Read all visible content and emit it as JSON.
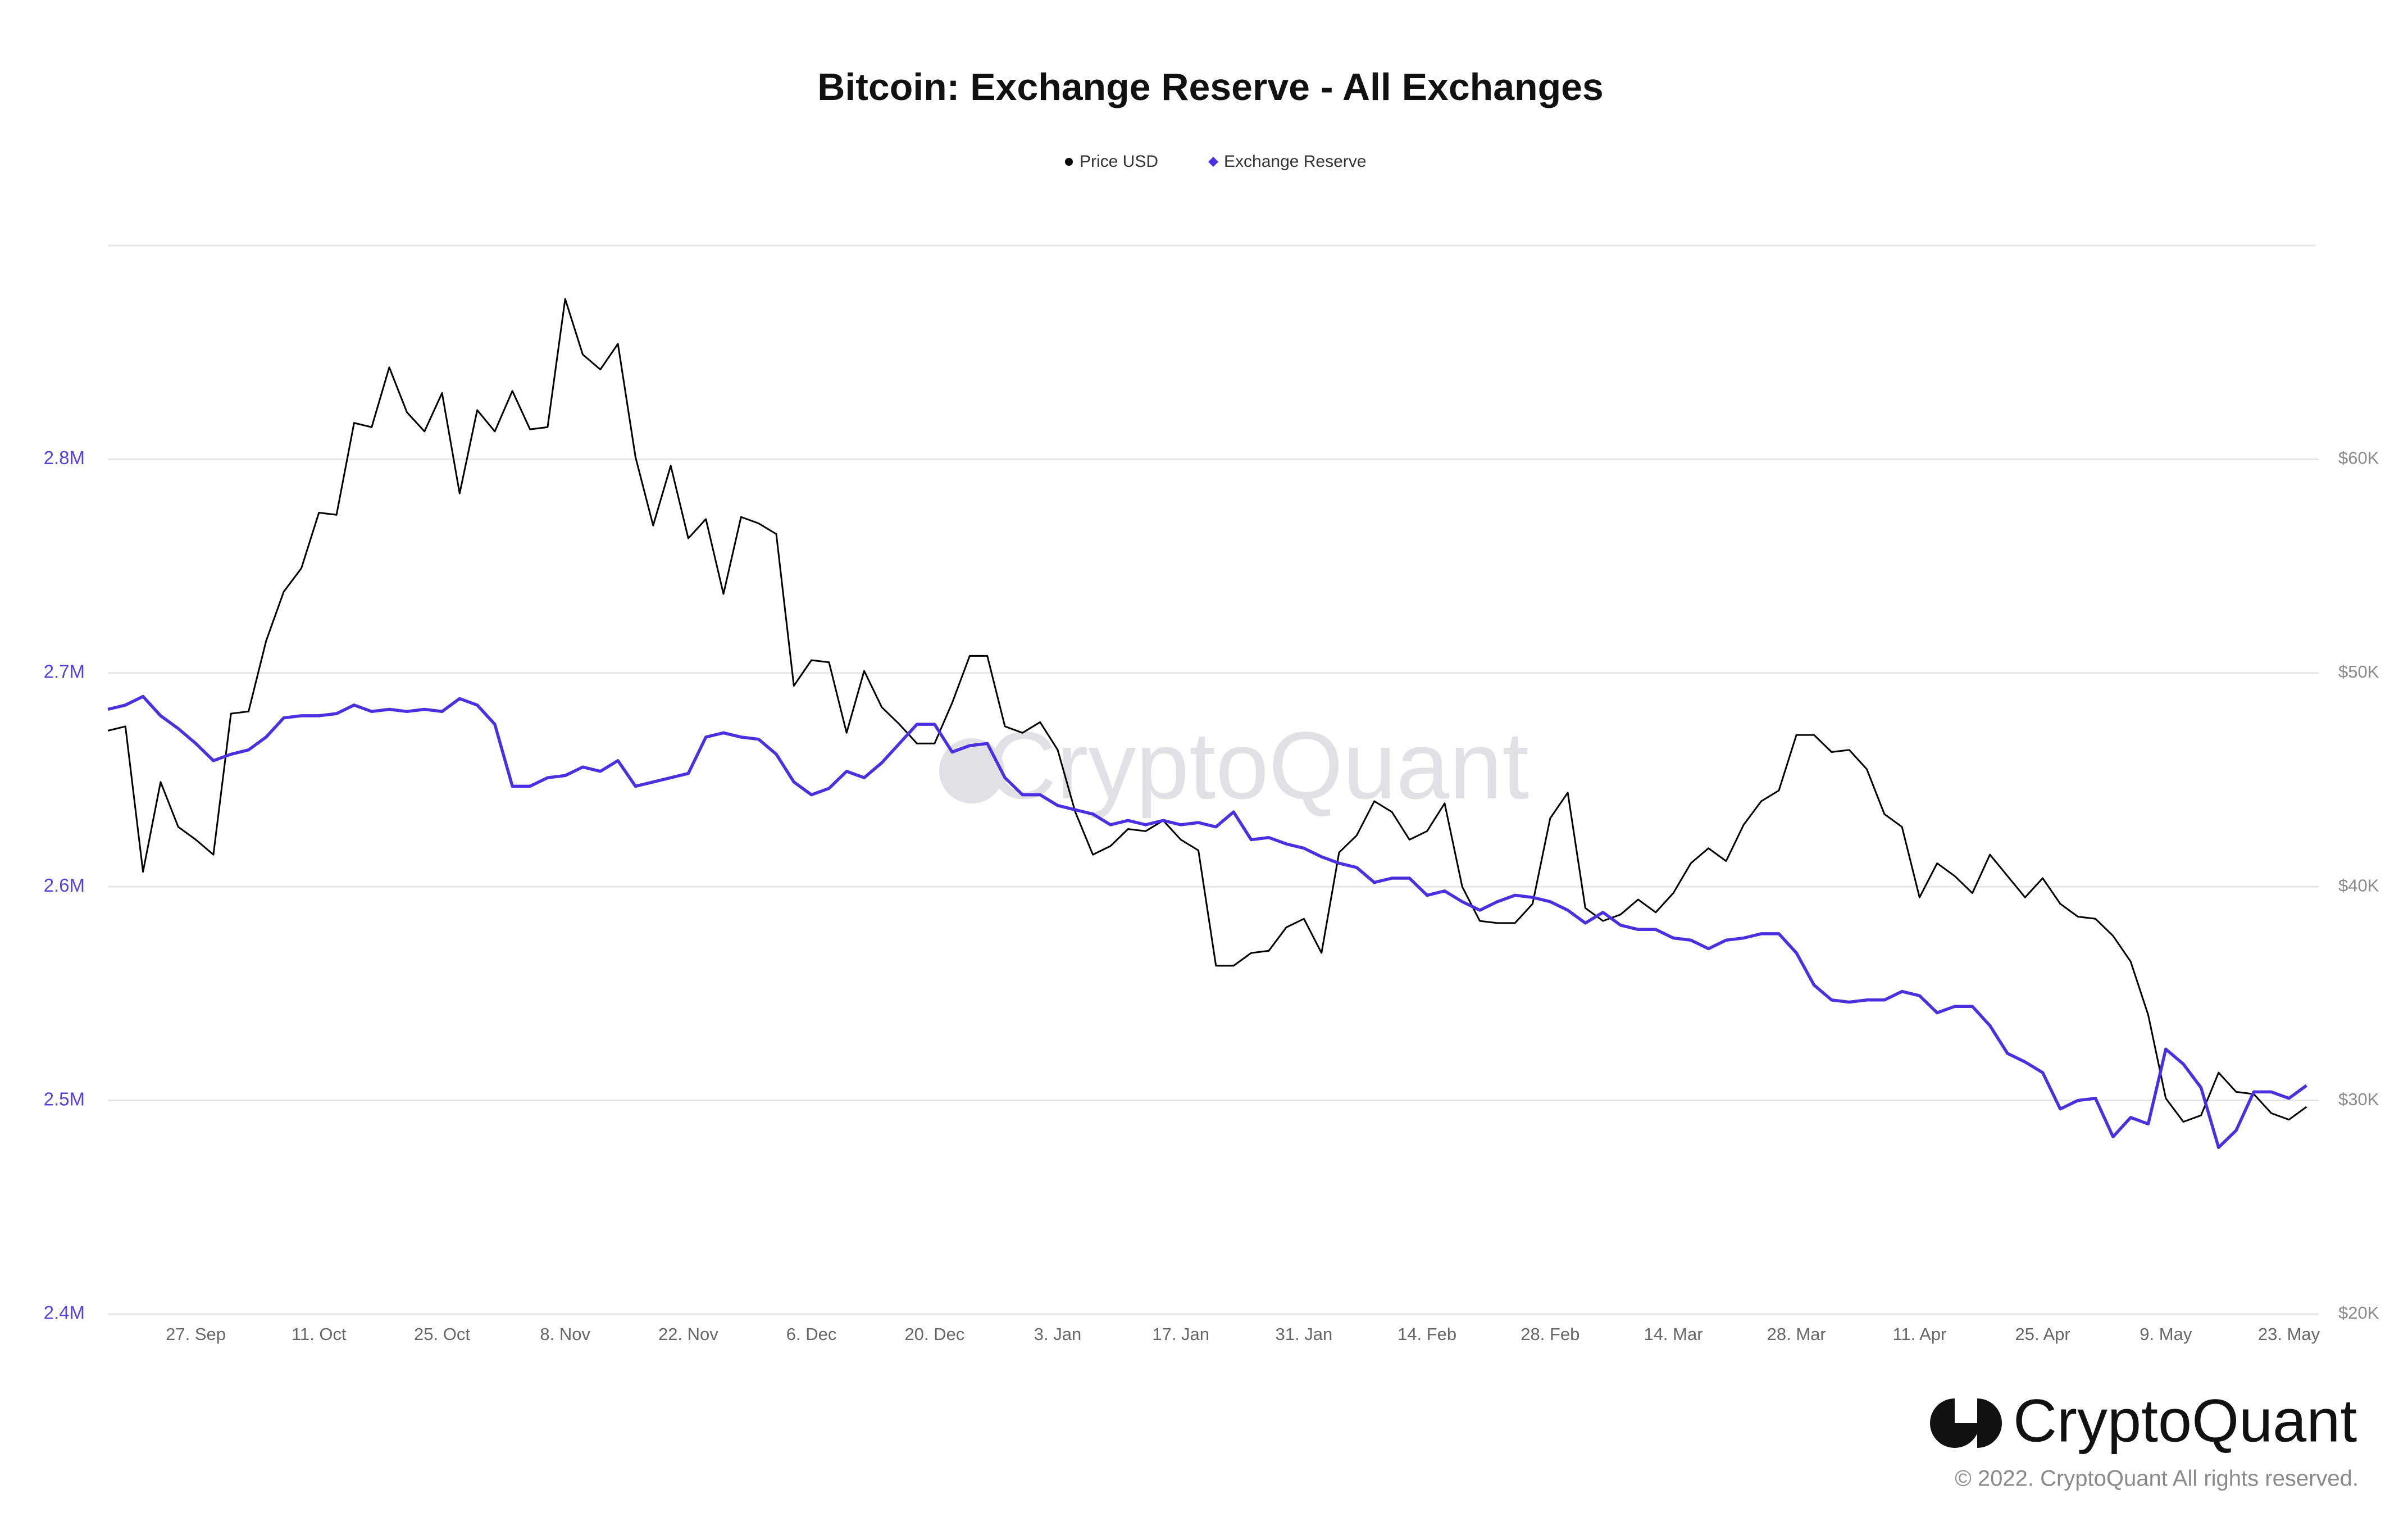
{
  "chart_data": {
    "type": "line",
    "title": "Bitcoin: Exchange Reserve - All Exchanges",
    "watermark": "CryptoQuant",
    "categories": [
      null,
      null,
      null,
      null,
      null,
      "27. Sep",
      null,
      null,
      null,
      null,
      null,
      null,
      "11. Oct",
      null,
      null,
      null,
      null,
      null,
      null,
      "25. Oct",
      null,
      null,
      null,
      null,
      null,
      null,
      "8. Nov",
      null,
      null,
      null,
      null,
      null,
      null,
      "22. Nov",
      null,
      null,
      null,
      null,
      null,
      null,
      "6. Dec",
      null,
      null,
      null,
      null,
      null,
      null,
      "20. Dec",
      null,
      null,
      null,
      null,
      null,
      null,
      "3. Jan",
      null,
      null,
      null,
      null,
      null,
      null,
      "17. Jan",
      null,
      null,
      null,
      null,
      null,
      null,
      "31. Jan",
      null,
      null,
      null,
      null,
      null,
      null,
      "14. Feb",
      null,
      null,
      null,
      null,
      null,
      null,
      "28. Feb",
      null,
      null,
      null,
      null,
      null,
      null,
      "14. Mar",
      null,
      null,
      null,
      null,
      null,
      null,
      "28. Mar",
      null,
      null,
      null,
      null,
      null,
      null,
      "11. Apr",
      null,
      null,
      null,
      null,
      null,
      null,
      "25. Apr",
      null,
      null,
      null,
      null,
      null,
      null,
      "9. May",
      null,
      null,
      null,
      null,
      null,
      null,
      "23. May",
      null
    ],
    "series": [
      {
        "name": "Price USD",
        "color": "#000000",
        "marker": "circle",
        "axis": "y2",
        "values": [
          47300,
          47500,
          40700,
          44900,
          42800,
          42200,
          41500,
          48100,
          48200,
          51500,
          53800,
          54900,
          57500,
          57400,
          61700,
          61500,
          64300,
          62200,
          61300,
          63100,
          58400,
          62300,
          61300,
          63200,
          61400,
          61500,
          67500,
          64900,
          64200,
          65400,
          60100,
          56900,
          59700,
          56300,
          57200,
          53700,
          57300,
          57000,
          56500,
          49400,
          50600,
          50500,
          47200,
          50100,
          48400,
          47600,
          46700,
          46700,
          48600,
          50800,
          50800,
          47500,
          47200,
          47700,
          46400,
          43500,
          41500,
          41900,
          42700,
          42600,
          43100,
          42200,
          41700,
          36300,
          36300,
          36900,
          37000,
          38100,
          38500,
          36900,
          41600,
          42400,
          44000,
          43500,
          42200,
          42600,
          43900,
          40000,
          38400,
          38300,
          38300,
          39200,
          43200,
          44400,
          39000,
          38400,
          38700,
          39400,
          38800,
          39700,
          41100,
          41800,
          41200,
          42900,
          44000,
          44500,
          47100,
          47100,
          46300,
          46400,
          45500,
          43400,
          42800,
          39500,
          41100,
          40500,
          39700,
          41500,
          40500,
          39500,
          40400,
          39200,
          38600,
          38500,
          37700,
          36500,
          34000,
          30100,
          29000,
          29300,
          31300,
          30400,
          30300,
          29400,
          29100,
          29700
        ]
      },
      {
        "name": "Exchange Reserve",
        "color": "#4b2fe0",
        "marker": "diamond",
        "values": [
          2683000,
          2685000,
          2689000,
          2680000,
          2674000,
          2667000,
          2659000,
          2662000,
          2664000,
          2670000,
          2679000,
          2680000,
          2680000,
          2681000,
          2685000,
          2682000,
          2683000,
          2682000,
          2683000,
          2682000,
          2688000,
          2685000,
          2676000,
          2647000,
          2647000,
          2651000,
          2652000,
          2656000,
          2654000,
          2659000,
          2647000,
          2649000,
          2651000,
          2653000,
          2670000,
          2672000,
          2670000,
          2669000,
          2662000,
          2649000,
          2643000,
          2646000,
          2654000,
          2651000,
          2658000,
          2667000,
          2676000,
          2676000,
          2663000,
          2666000,
          2667000,
          2651000,
          2643000,
          2643000,
          2638000,
          2636000,
          2634000,
          2629000,
          2631000,
          2629000,
          2631000,
          2629000,
          2630000,
          2628000,
          2635000,
          2622000,
          2623000,
          2620000,
          2618000,
          2614000,
          2611000,
          2609000,
          2602000,
          2604000,
          2604000,
          2596000,
          2598000,
          2593000,
          2589000,
          2593000,
          2596000,
          2595000,
          2593000,
          2589000,
          2583000,
          2588000,
          2582000,
          2580000,
          2580000,
          2576000,
          2575000,
          2571000,
          2575000,
          2576000,
          2578000,
          2578000,
          2569000,
          2554000,
          2547000,
          2546000,
          2547000,
          2547000,
          2551000,
          2549000,
          2541000,
          2544000,
          2544000,
          2535000,
          2522000,
          2518000,
          2513000,
          2496000,
          2500000,
          2501000,
          2483000,
          2492000,
          2489000,
          2524000,
          2517000,
          2506000,
          2478000,
          2486000,
          2504000,
          2504000,
          2501000,
          2507000
        ]
      }
    ],
    "ylim": [
      2400000,
      2900000
    ],
    "yticks": [
      {
        "value": 2400000,
        "label": "2.4M"
      },
      {
        "value": 2500000,
        "label": "2.5M"
      },
      {
        "value": 2600000,
        "label": "2.6M"
      },
      {
        "value": 2700000,
        "label": "2.7M"
      },
      {
        "value": 2800000,
        "label": "2.8M"
      }
    ],
    "y2lim": [
      20000,
      70000
    ],
    "y2ticks": [
      {
        "value": 20000,
        "label": "$20K"
      },
      {
        "value": 30000,
        "label": "$30K"
      },
      {
        "value": 40000,
        "label": "$40K"
      },
      {
        "value": 50000,
        "label": "$50K"
      },
      {
        "value": 60000,
        "label": "$60K"
      }
    ],
    "grid": true
  },
  "footer": {
    "brand": "CryptoQuant",
    "copyright": "© 2022. CryptoQuant All rights reserved."
  }
}
